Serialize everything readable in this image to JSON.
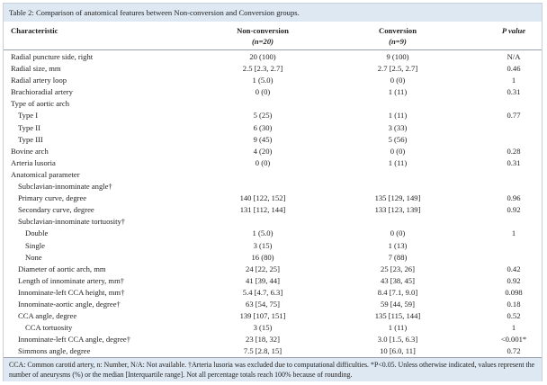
{
  "table": {
    "title": "Table 2: Comparison of anatomical features between Non-conversion and Conversion groups.",
    "header": {
      "characteristic": "Characteristic",
      "nonconversion": "Non-conversion",
      "nonconversion_n": "(n=20)",
      "conversion": "Conversion",
      "conversion_n": "(n=9)",
      "p": "P value"
    },
    "rows": [
      [
        "Radial puncture side, right",
        "20 (100)",
        "9 (100)",
        "N/A"
      ],
      [
        "Radial size, mm",
        "2.5 [2.3, 2.7]",
        "2.7 [2.5, 2.7]",
        "0.46"
      ],
      [
        "Radial artery loop",
        "1 (5.0)",
        "0 (0)",
        "1"
      ],
      [
        "Brachioradial artery",
        "0 (0)",
        "1 (11)",
        "0.31"
      ],
      [
        "Type of aortic arch",
        null,
        null,
        null
      ],
      [
        "Type I",
        "5 (25)",
        "1 (11)",
        "0.77"
      ],
      [
        "Type II",
        "6 (30)",
        "3 (33)",
        null
      ],
      [
        "Type III",
        "9 (45)",
        "5 (56)",
        null
      ],
      [
        "Bovine arch",
        "4 (20)",
        "0 (0)",
        "0.28"
      ],
      [
        "Arteria lusoria",
        "0 (0)",
        "1 (11)",
        "0.31"
      ],
      [
        "Anatomical parameter",
        null,
        null,
        null
      ],
      [
        "Subclavian-innominate angle†",
        null,
        null,
        null
      ],
      [
        "Primary curve, degree",
        "140 [122, 152]",
        "135 [129, 149]",
        "0.96"
      ],
      [
        "Secondary curve, degree",
        "131 [112, 144]",
        "133 [123, 139]",
        "0.92"
      ],
      [
        "Subclavian-innominate tortuosity†",
        null,
        null,
        null
      ],
      [
        "Double",
        "1 (5.0)",
        "0 (0)",
        "1"
      ],
      [
        "Single",
        "3 (15)",
        "1 (13)",
        null
      ],
      [
        "None",
        "16 (80)",
        "7 (88)",
        null
      ],
      [
        "Diameter of aortic arch, mm",
        "24 [22, 25]",
        "25 [23, 26]",
        "0.42"
      ],
      [
        "Length of innominate artery, mm†",
        "41 [39, 44]",
        "43 [38, 45]",
        "0.92"
      ],
      [
        "Innominate-left CCA height, mm†",
        "5.4 [4.7, 6.3]",
        "8.4 [7.1, 9.0]",
        "0.098"
      ],
      [
        "Innominate-aortic angle, degree†",
        "63 [54, 75]",
        "59 [44, 59]",
        "0.18"
      ],
      [
        "CCA angle, degree",
        "139 [107, 151]",
        "135 [115, 144]",
        "0.52"
      ],
      [
        "CCA tortuosity",
        "3 (15)",
        "1 (11)",
        "1"
      ],
      [
        "Innominate-left CCA angle, degree†",
        "23 [18, 32]",
        "3.0 [1.5, 6.3]",
        "<0.001*"
      ],
      [
        "Simmons angle, degree",
        "7.5 [2.8, 15]",
        "10 [6.0, 11]",
        "0.72"
      ]
    ],
    "footnote": "CCA: Common carotid artery, n: Number, N/A: Not available. †Arteria lusoria was excluded due to computational difficulties. *P<0.05. Unless otherwise indicated, values represent the number of aneurysms (%) or the median [Interquartile range]. Not all percentage totals reach 100% because of rounding."
  }
}
